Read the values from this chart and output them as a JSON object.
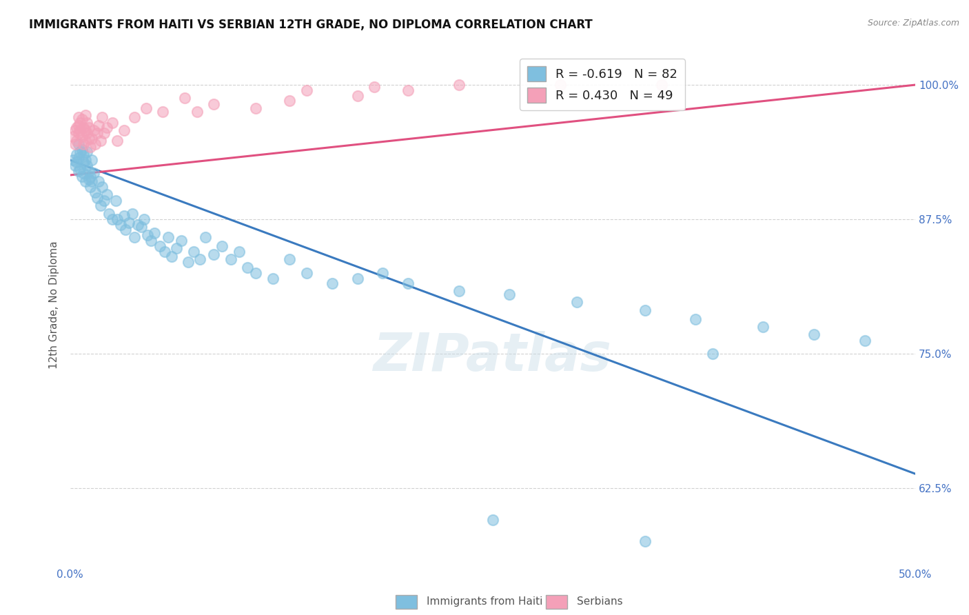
{
  "title": "IMMIGRANTS FROM HAITI VS SERBIAN 12TH GRADE, NO DIPLOMA CORRELATION CHART",
  "source": "Source: ZipAtlas.com",
  "ylabel": "12th Grade, No Diploma",
  "ytick_labels": [
    "100.0%",
    "87.5%",
    "75.0%",
    "62.5%"
  ],
  "ytick_values": [
    1.0,
    0.875,
    0.75,
    0.625
  ],
  "xlim": [
    0.0,
    0.5
  ],
  "ylim": [
    0.555,
    1.035
  ],
  "watermark": "ZIPatlas",
  "legend_entry_haiti": "R = -0.619   N = 82",
  "legend_entry_serbian": "R = 0.430   N = 49",
  "haiti_color": "#7fbfdf",
  "serbian_color": "#f4a0b8",
  "haiti_line_color": "#3a7abf",
  "serbian_line_color": "#e05080",
  "background_color": "#ffffff",
  "grid_color": "#cccccc",
  "haiti_line_x": [
    0.0,
    0.5
  ],
  "haiti_line_y": [
    0.93,
    0.638
  ],
  "serbian_line_x": [
    0.0,
    0.5
  ],
  "serbian_line_y": [
    0.916,
    1.0
  ],
  "haiti_scatter_x": [
    0.002,
    0.003,
    0.004,
    0.004,
    0.005,
    0.005,
    0.005,
    0.006,
    0.006,
    0.007,
    0.007,
    0.008,
    0.008,
    0.008,
    0.009,
    0.009,
    0.01,
    0.01,
    0.011,
    0.011,
    0.012,
    0.012,
    0.013,
    0.013,
    0.014,
    0.015,
    0.016,
    0.017,
    0.018,
    0.019,
    0.02,
    0.022,
    0.023,
    0.025,
    0.027,
    0.028,
    0.03,
    0.032,
    0.033,
    0.035,
    0.037,
    0.038,
    0.04,
    0.042,
    0.044,
    0.046,
    0.048,
    0.05,
    0.053,
    0.056,
    0.058,
    0.06,
    0.063,
    0.066,
    0.07,
    0.073,
    0.077,
    0.08,
    0.085,
    0.09,
    0.095,
    0.1,
    0.105,
    0.11,
    0.12,
    0.13,
    0.14,
    0.155,
    0.17,
    0.185,
    0.2,
    0.23,
    0.26,
    0.3,
    0.34,
    0.37,
    0.41,
    0.44,
    0.47,
    0.25,
    0.34,
    0.38
  ],
  "haiti_scatter_y": [
    0.93,
    0.925,
    0.935,
    0.928,
    0.932,
    0.92,
    0.945,
    0.938,
    0.922,
    0.94,
    0.915,
    0.928,
    0.935,
    0.918,
    0.93,
    0.91,
    0.925,
    0.938,
    0.912,
    0.92,
    0.905,
    0.915,
    0.91,
    0.93,
    0.918,
    0.9,
    0.895,
    0.91,
    0.888,
    0.905,
    0.892,
    0.898,
    0.88,
    0.875,
    0.892,
    0.875,
    0.87,
    0.878,
    0.865,
    0.872,
    0.88,
    0.858,
    0.87,
    0.868,
    0.875,
    0.86,
    0.855,
    0.862,
    0.85,
    0.845,
    0.858,
    0.84,
    0.848,
    0.855,
    0.835,
    0.845,
    0.838,
    0.858,
    0.842,
    0.85,
    0.838,
    0.845,
    0.83,
    0.825,
    0.82,
    0.838,
    0.825,
    0.815,
    0.82,
    0.825,
    0.815,
    0.808,
    0.805,
    0.798,
    0.79,
    0.782,
    0.775,
    0.768,
    0.762,
    0.595,
    0.575,
    0.75
  ],
  "serbian_scatter_x": [
    0.002,
    0.003,
    0.003,
    0.004,
    0.004,
    0.005,
    0.005,
    0.005,
    0.006,
    0.006,
    0.007,
    0.007,
    0.008,
    0.008,
    0.009,
    0.009,
    0.009,
    0.01,
    0.01,
    0.011,
    0.011,
    0.012,
    0.013,
    0.014,
    0.015,
    0.016,
    0.017,
    0.018,
    0.019,
    0.02,
    0.022,
    0.025,
    0.028,
    0.032,
    0.038,
    0.045,
    0.055,
    0.068,
    0.085,
    0.11,
    0.14,
    0.18,
    0.23,
    0.29,
    0.35,
    0.17,
    0.2,
    0.13,
    0.075
  ],
  "serbian_scatter_y": [
    0.952,
    0.958,
    0.945,
    0.96,
    0.948,
    0.962,
    0.955,
    0.97,
    0.965,
    0.958,
    0.968,
    0.952,
    0.96,
    0.945,
    0.958,
    0.948,
    0.972,
    0.955,
    0.965,
    0.95,
    0.96,
    0.942,
    0.95,
    0.958,
    0.945,
    0.955,
    0.962,
    0.948,
    0.97,
    0.955,
    0.96,
    0.965,
    0.948,
    0.958,
    0.97,
    0.978,
    0.975,
    0.988,
    0.982,
    0.978,
    0.995,
    0.998,
    1.0,
    1.0,
    1.0,
    0.99,
    0.995,
    0.985,
    0.975
  ]
}
